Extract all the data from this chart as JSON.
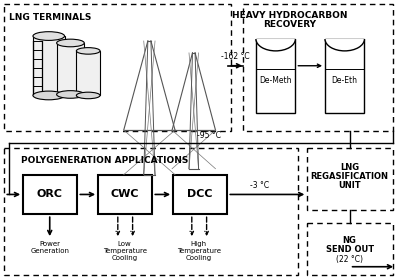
{
  "bg_color": "#ffffff",
  "lng_terminals_label": "LNG TERMINALS",
  "heavy_hydro_line1": "HEAVY HYDROCARBON",
  "heavy_hydro_line2": "RECOVERY",
  "polygen_label": "POLYGENERATION APPLICATIONS",
  "lng_regasif_line1": "LNG",
  "lng_regasif_line2": "REGASIFICATION",
  "lng_regasif_line3": "UNIT",
  "ng_sendout_line1": "NG",
  "ng_sendout_line2": "SEND OUT",
  "ng_temp_label": "(22 °C)",
  "temp_162": "-162 °C",
  "temp_95": "-95 °C",
  "temp_3": "-3 °C",
  "demeth_label": "De-Meth",
  "deeth_label": "De-Eth",
  "orc_label": "ORC",
  "cwc_label": "CWC",
  "dcc_label": "DCC",
  "power_gen_label": "Power\nGeneration",
  "low_temp_label": "Low\nTemperature\nCooling",
  "high_temp_label": "High\nTemperature\nCooling"
}
